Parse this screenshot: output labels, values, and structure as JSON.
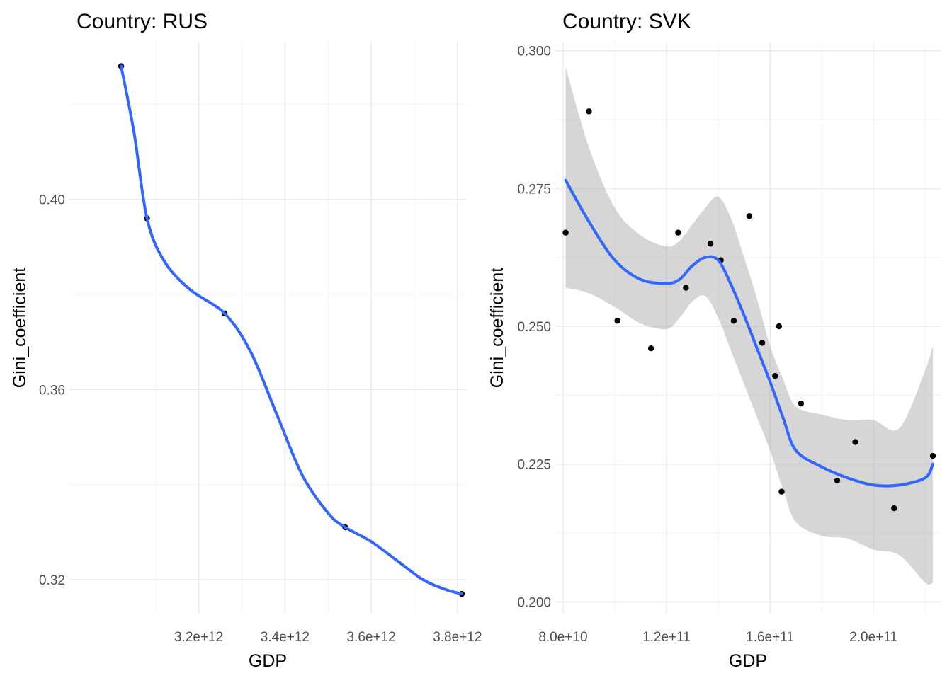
{
  "chart_data": [
    {
      "type": "scatter",
      "title": "Country: RUS",
      "xlabel": "GDP",
      "ylabel": "Gini_coefficient",
      "xlim": [
        2900000000000.0,
        3820000000000.0
      ],
      "ylim": [
        0.313,
        0.433
      ],
      "x_ticks": [
        3200000000000.0,
        3400000000000.0,
        3600000000000.0,
        3800000000000.0
      ],
      "x_tick_labels": [
        "3.2e+12",
        "3.4e+12",
        "3.6e+12",
        "3.8e+12"
      ],
      "y_ticks": [
        0.32,
        0.36,
        0.4
      ],
      "y_tick_labels": [
        "0.32",
        "0.36",
        "0.40"
      ],
      "grid": true,
      "points": [
        {
          "x": 3020000000000.0,
          "y": 0.428
        },
        {
          "x": 3080000000000.0,
          "y": 0.396
        },
        {
          "x": 3260000000000.0,
          "y": 0.376
        },
        {
          "x": 3540000000000.0,
          "y": 0.331
        },
        {
          "x": 3810000000000.0,
          "y": 0.317
        }
      ],
      "smooth": {
        "color": "#3366FF",
        "x": [
          3020000000000.0,
          3050000000000.0,
          3080000000000.0,
          3120000000000.0,
          3180000000000.0,
          3260000000000.0,
          3320000000000.0,
          3380000000000.0,
          3440000000000.0,
          3500000000000.0,
          3540000000000.0,
          3600000000000.0,
          3660000000000.0,
          3720000000000.0,
          3770000000000.0,
          3810000000000.0
        ],
        "y": [
          0.428,
          0.414,
          0.396,
          0.387,
          0.381,
          0.376,
          0.368,
          0.355,
          0.342,
          0.334,
          0.331,
          0.328,
          0.324,
          0.32,
          0.318,
          0.317
        ]
      }
    },
    {
      "type": "scatter",
      "title": "Country: SVK",
      "xlabel": "GDP",
      "ylabel": "Gini_coefficient",
      "xlim": [
        77000000000.0,
        226000000000.0
      ],
      "ylim": [
        0.198,
        0.3015
      ],
      "x_ticks": [
        80000000000.0,
        120000000000.0,
        160000000000.0,
        200000000000.0
      ],
      "x_tick_labels": [
        "8.0e+10",
        "1.2e+11",
        "1.6e+11",
        "2.0e+11"
      ],
      "y_ticks": [
        0.2,
        0.225,
        0.25,
        0.275,
        0.3
      ],
      "y_tick_labels": [
        "0.200",
        "0.225",
        "0.250",
        "0.275",
        "0.300"
      ],
      "grid": true,
      "points": [
        {
          "x": 81000000000.0,
          "y": 0.267
        },
        {
          "x": 90000000000.0,
          "y": 0.289
        },
        {
          "x": 101000000000.0,
          "y": 0.251
        },
        {
          "x": 114000000000.0,
          "y": 0.246
        },
        {
          "x": 124500000000.0,
          "y": 0.267
        },
        {
          "x": 127500000000.0,
          "y": 0.257
        },
        {
          "x": 137000000000.0,
          "y": 0.265
        },
        {
          "x": 141000000000.0,
          "y": 0.262
        },
        {
          "x": 146000000000.0,
          "y": 0.251
        },
        {
          "x": 152000000000.0,
          "y": 0.27
        },
        {
          "x": 157000000000.0,
          "y": 0.247
        },
        {
          "x": 162000000000.0,
          "y": 0.241
        },
        {
          "x": 163500000000.0,
          "y": 0.25
        },
        {
          "x": 164500000000.0,
          "y": 0.22
        },
        {
          "x": 172000000000.0,
          "y": 0.236
        },
        {
          "x": 186000000000.0,
          "y": 0.222
        },
        {
          "x": 193000000000.0,
          "y": 0.229
        },
        {
          "x": 208000000000.0,
          "y": 0.217
        },
        {
          "x": 223000000000.0,
          "y": 0.2265
        }
      ],
      "smooth": {
        "color": "#3366FF",
        "x": [
          81000000000.0,
          90000000000.0,
          100000000000.0,
          110000000000.0,
          120000000000.0,
          125000000000.0,
          130000000000.0,
          135000000000.0,
          140000000000.0,
          145000000000.0,
          150000000000.0,
          155000000000.0,
          160000000000.0,
          165000000000.0,
          170000000000.0,
          180000000000.0,
          190000000000.0,
          200000000000.0,
          210000000000.0,
          220000000000.0,
          223000000000.0
        ],
        "y": [
          0.2765,
          0.269,
          0.262,
          0.2585,
          0.2578,
          0.2585,
          0.261,
          0.2625,
          0.262,
          0.2575,
          0.252,
          0.246,
          0.24,
          0.2335,
          0.2275,
          0.2245,
          0.2225,
          0.2212,
          0.2212,
          0.2225,
          0.225
        ]
      },
      "band": {
        "x": [
          81000000000.0,
          90000000000.0,
          100000000000.0,
          110000000000.0,
          120000000000.0,
          125000000000.0,
          130000000000.0,
          135000000000.0,
          140000000000.0,
          145000000000.0,
          150000000000.0,
          155000000000.0,
          160000000000.0,
          165000000000.0,
          170000000000.0,
          180000000000.0,
          190000000000.0,
          200000000000.0,
          210000000000.0,
          220000000000.0,
          223000000000.0
        ],
        "upper": [
          0.297,
          0.2825,
          0.2715,
          0.2665,
          0.2645,
          0.2655,
          0.2685,
          0.2715,
          0.2735,
          0.2695,
          0.2625,
          0.255,
          0.2465,
          0.2405,
          0.2355,
          0.234,
          0.233,
          0.233,
          0.2315,
          0.242,
          0.2465
        ],
        "lower": [
          0.257,
          0.256,
          0.2535,
          0.2505,
          0.2495,
          0.2515,
          0.2545,
          0.2555,
          0.2515,
          0.2455,
          0.2395,
          0.2335,
          0.2275,
          0.2205,
          0.2145,
          0.212,
          0.2115,
          0.2095,
          0.2085,
          0.2035,
          0.2035
        ]
      }
    }
  ]
}
